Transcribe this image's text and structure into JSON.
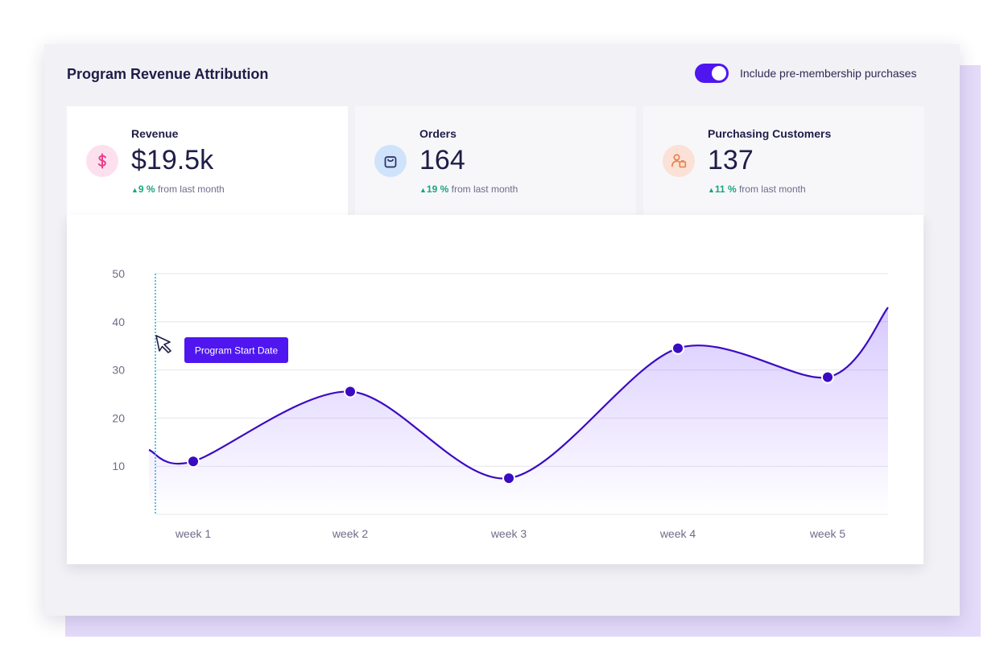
{
  "title": "Program Revenue Attribution",
  "toggle": {
    "label": "Include pre-membership purchases",
    "on": true
  },
  "colors": {
    "accent": "#4f16f0",
    "line": "#3b0bc2",
    "positive": "#1aa57e",
    "text": "#1f1d47"
  },
  "metrics": [
    {
      "icon": "dollar-icon",
      "label": "Revenue",
      "value": "$19.5k",
      "change": "9 %",
      "change_suffix": "from last month"
    },
    {
      "icon": "shopping-bag-icon",
      "label": "Orders",
      "value": "164",
      "change": "19 %",
      "change_suffix": "from last month"
    },
    {
      "icon": "customer-icon",
      "label": "Purchasing Customers",
      "value": "137",
      "change": "11 %",
      "change_suffix": "from last month"
    }
  ],
  "marker": {
    "label": "Program Start Date",
    "icon": "cursor-arrow-icon"
  },
  "chart_data": {
    "type": "area",
    "categories": [
      "week 1",
      "week 2",
      "week 3",
      "week 4",
      "week 5"
    ],
    "series": [
      {
        "values": [
          11,
          25.5,
          7.5,
          34.5,
          28.5
        ]
      }
    ],
    "ylim": [
      0,
      50
    ],
    "yticks": [
      10,
      20,
      30,
      40,
      50
    ],
    "grid": true
  }
}
